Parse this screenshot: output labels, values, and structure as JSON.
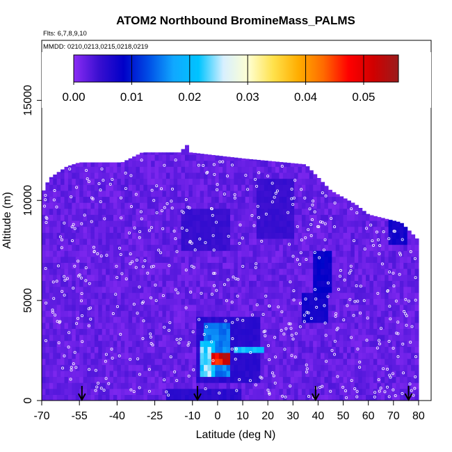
{
  "chart_data": {
    "type": "heatmap",
    "title": "ATOM2 Northbound BromineMass_PALMS",
    "flights_note": "Flts: 6,7,8,9,10",
    "dates_note": "MMDD: 0210,0213,0215,0218,0219",
    "xlabel": "Latitude (deg N)",
    "ylabel": "Altitude (m)",
    "xlim": [
      -70,
      85
    ],
    "ylim": [
      0,
      18000
    ],
    "x_ticks": [
      -70,
      -55,
      -40,
      -25,
      -10,
      0,
      10,
      20,
      30,
      40,
      50,
      60,
      70,
      80
    ],
    "x_tick_labels": [
      "-70",
      "-55",
      "-40",
      "-25",
      "-10",
      "0",
      "10",
      "20",
      "30",
      "40",
      "50",
      "60",
      "70",
      "80"
    ],
    "y_ticks": [
      0,
      5000,
      10000,
      15000
    ],
    "y_tick_labels": [
      "0",
      "5000",
      "10000",
      "15000"
    ],
    "colorbar": {
      "range": [
        0,
        0.056
      ],
      "ticks": [
        0.0,
        0.01,
        0.02,
        0.03,
        0.04,
        0.05
      ],
      "tick_labels": [
        "0.00",
        "0.01",
        "0.02",
        "0.03",
        "0.04",
        "0.05"
      ],
      "colors": [
        "#8b2cf5",
        "#3a0fd0",
        "#0000c8",
        "#004ee6",
        "#10a8ff",
        "#00c4ff",
        "#d8f0ff",
        "#ffffd0",
        "#ffe14a",
        "#ffad00",
        "#ff6a00",
        "#ff0000",
        "#d00000",
        "#9a1c1c"
      ]
    },
    "ceiling_profile": [
      {
        "lat": -70,
        "alt": 10300
      },
      {
        "lat": -67,
        "alt": 11100
      },
      {
        "lat": -60,
        "alt": 11700
      },
      {
        "lat": -55,
        "alt": 11900
      },
      {
        "lat": -50,
        "alt": 11900
      },
      {
        "lat": -45,
        "alt": 11900
      },
      {
        "lat": -38,
        "alt": 11900
      },
      {
        "lat": -30,
        "alt": 12400
      },
      {
        "lat": -15,
        "alt": 12400
      },
      {
        "lat": -12,
        "alt": 12800
      },
      {
        "lat": -11,
        "alt": 12400
      },
      {
        "lat": 10,
        "alt": 12100
      },
      {
        "lat": 35,
        "alt": 11800
      },
      {
        "lat": 45,
        "alt": 10500
      },
      {
        "lat": 55,
        "alt": 9800
      },
      {
        "lat": 60,
        "alt": 9300
      },
      {
        "lat": 73,
        "alt": 8900
      },
      {
        "lat": 77,
        "alt": 8400
      },
      {
        "lat": 80,
        "alt": 8000
      }
    ],
    "background_value": 0.002,
    "features": [
      {
        "lat_range": [
          -8,
          17
        ],
        "alt_range": [
          800,
          4300
        ],
        "value": 0.006
      },
      {
        "lat_range": [
          -6,
          5
        ],
        "alt_range": [
          1200,
          3800
        ],
        "value": 0.017
      },
      {
        "lat_range": [
          -7,
          -1
        ],
        "alt_range": [
          1300,
          3000
        ],
        "value": 0.026
      },
      {
        "lat_range": [
          7,
          18
        ],
        "alt_range": [
          2300,
          2700
        ],
        "value": 0.023
      },
      {
        "lat_range": [
          -2,
          5
        ],
        "alt_range": [
          1800,
          2400
        ],
        "value": 0.056
      },
      {
        "lat_range": [
          34,
          44
        ],
        "alt_range": [
          4000,
          5500
        ],
        "value": 0.008
      },
      {
        "lat_range": [
          38,
          46
        ],
        "alt_range": [
          5500,
          7600
        ],
        "value": 0.009
      },
      {
        "lat_range": [
          -15,
          5
        ],
        "alt_range": [
          7500,
          9500
        ],
        "value": 0.005
      },
      {
        "lat_range": [
          15,
          30
        ],
        "alt_range": [
          8000,
          11000
        ],
        "value": 0.005
      },
      {
        "lat_range": [
          68,
          76
        ],
        "alt_range": [
          7800,
          9300
        ],
        "value": 0.008
      },
      {
        "lat_range": [
          -20,
          10
        ],
        "alt_range": [
          0,
          600
        ],
        "value": 0.006
      }
    ],
    "profile_markers_lat": [
      -54,
      -8,
      39,
      76
    ]
  }
}
